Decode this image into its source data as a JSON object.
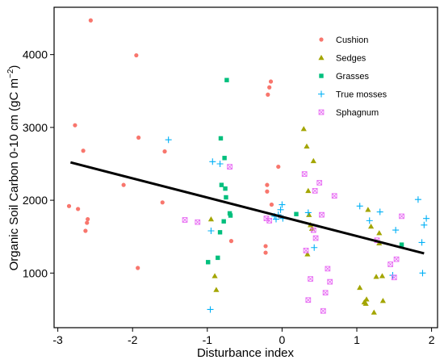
{
  "chart_data": {
    "type": "scatter",
    "title": "",
    "xlabel": "Disturbance index",
    "ylabel": "Organic Soil Carbon  0-10 cm (gC m",
    "ylabel_sup": "−2",
    "ylabel_close": ")",
    "xlim": [
      -3.05,
      2.08
    ],
    "ylim": [
      250,
      4650
    ],
    "xticks": [
      -3,
      -2,
      -1,
      0,
      1,
      2
    ],
    "xtick_labels": [
      "-3",
      "-2",
      "-1",
      "0",
      "1",
      "2"
    ],
    "yticks": [
      1000,
      2000,
      3000,
      4000
    ],
    "ytick_labels": [
      "1000",
      "2000",
      "3000",
      "4000"
    ],
    "grid": false,
    "legend_position": "top-right",
    "series": [
      {
        "name": "Cushion",
        "marker": "circle",
        "color": "#F8766D",
        "points": [
          [
            -2.85,
            1920
          ],
          [
            -2.77,
            3030
          ],
          [
            -2.73,
            1880
          ],
          [
            -2.66,
            2680
          ],
          [
            -2.63,
            1580
          ],
          [
            -2.61,
            1690
          ],
          [
            -2.6,
            1740
          ],
          [
            -2.56,
            4470
          ],
          [
            -2.12,
            2210
          ],
          [
            -1.95,
            3990
          ],
          [
            -1.92,
            2860
          ],
          [
            -1.93,
            1070
          ],
          [
            -1.57,
            2670
          ],
          [
            -1.6,
            1970
          ],
          [
            -0.68,
            1440
          ],
          [
            -0.22,
            1370
          ],
          [
            -0.22,
            1280
          ],
          [
            -0.2,
            2210
          ],
          [
            -0.2,
            2120
          ],
          [
            -0.19,
            3450
          ],
          [
            -0.17,
            3550
          ],
          [
            -0.15,
            3630
          ],
          [
            -0.14,
            1940
          ],
          [
            -0.05,
            2460
          ],
          [
            -0.03,
            1780
          ]
        ]
      },
      {
        "name": "Sedges",
        "marker": "triangle",
        "color": "#A3A500",
        "points": [
          [
            -0.95,
            1740
          ],
          [
            -0.9,
            960
          ],
          [
            -0.88,
            770
          ],
          [
            0.29,
            2980
          ],
          [
            0.33,
            2740
          ],
          [
            0.35,
            2130
          ],
          [
            0.36,
            1800
          ],
          [
            0.38,
            1660
          ],
          [
            0.4,
            1610
          ],
          [
            0.42,
            2540
          ],
          [
            0.34,
            1260
          ],
          [
            1.04,
            800
          ],
          [
            1.1,
            600
          ],
          [
            1.12,
            580
          ],
          [
            1.13,
            640
          ],
          [
            1.15,
            1870
          ],
          [
            1.19,
            1640
          ],
          [
            1.23,
            460
          ],
          [
            1.26,
            950
          ],
          [
            1.3,
            1550
          ],
          [
            1.3,
            1410
          ],
          [
            1.35,
            620
          ],
          [
            1.34,
            960
          ]
        ]
      },
      {
        "name": "Grasses",
        "marker": "square",
        "color": "#00BF7D",
        "points": [
          [
            -0.99,
            1150
          ],
          [
            -0.86,
            1210
          ],
          [
            -0.83,
            1560
          ],
          [
            -0.82,
            2850
          ],
          [
            -0.81,
            2210
          ],
          [
            -0.78,
            1710
          ],
          [
            -0.77,
            2580
          ],
          [
            -0.76,
            2160
          ],
          [
            -0.75,
            2040
          ],
          [
            -0.74,
            3650
          ],
          [
            -0.7,
            1820
          ],
          [
            -0.69,
            1790
          ],
          [
            0.19,
            1810
          ],
          [
            1.6,
            1390
          ]
        ]
      },
      {
        "name": "True mosses",
        "marker": "plus",
        "color": "#00B0F6",
        "points": [
          [
            -1.52,
            2830
          ],
          [
            -0.95,
            1580
          ],
          [
            -0.93,
            2530
          ],
          [
            -0.83,
            2500
          ],
          [
            -0.96,
            500
          ],
          [
            -0.1,
            1780
          ],
          [
            -0.08,
            1740
          ],
          [
            -0.05,
            1800
          ],
          [
            -0.02,
            1870
          ],
          [
            0.0,
            1940
          ],
          [
            0.01,
            1750
          ],
          [
            0.35,
            1830
          ],
          [
            0.43,
            1350
          ],
          [
            1.04,
            1920
          ],
          [
            1.17,
            1720
          ],
          [
            1.31,
            1840
          ],
          [
            1.48,
            970
          ],
          [
            1.52,
            1590
          ],
          [
            1.82,
            2010
          ],
          [
            1.87,
            1420
          ],
          [
            1.88,
            1000
          ],
          [
            1.9,
            1660
          ],
          [
            1.93,
            1750
          ]
        ]
      },
      {
        "name": "Sphagnum",
        "marker": "boxx",
        "color": "#E76BF3",
        "points": [
          [
            -1.3,
            1730
          ],
          [
            -1.13,
            1700
          ],
          [
            -0.7,
            2460
          ],
          [
            -0.21,
            1750
          ],
          [
            -0.17,
            1720
          ],
          [
            0.3,
            2360
          ],
          [
            0.32,
            1310
          ],
          [
            0.35,
            630
          ],
          [
            0.38,
            920
          ],
          [
            0.42,
            1590
          ],
          [
            0.44,
            2130
          ],
          [
            0.45,
            1480
          ],
          [
            0.5,
            2240
          ],
          [
            0.53,
            1800
          ],
          [
            0.55,
            480
          ],
          [
            0.58,
            730
          ],
          [
            0.61,
            1060
          ],
          [
            0.64,
            880
          ],
          [
            0.7,
            2060
          ],
          [
            1.27,
            1450
          ],
          [
            1.45,
            1120
          ],
          [
            1.5,
            940
          ],
          [
            1.53,
            1190
          ],
          [
            1.6,
            1780
          ]
        ]
      }
    ],
    "trendline": {
      "x": [
        -2.83,
        1.9
      ],
      "y": [
        2520,
        1270
      ],
      "color": "#000000"
    }
  }
}
